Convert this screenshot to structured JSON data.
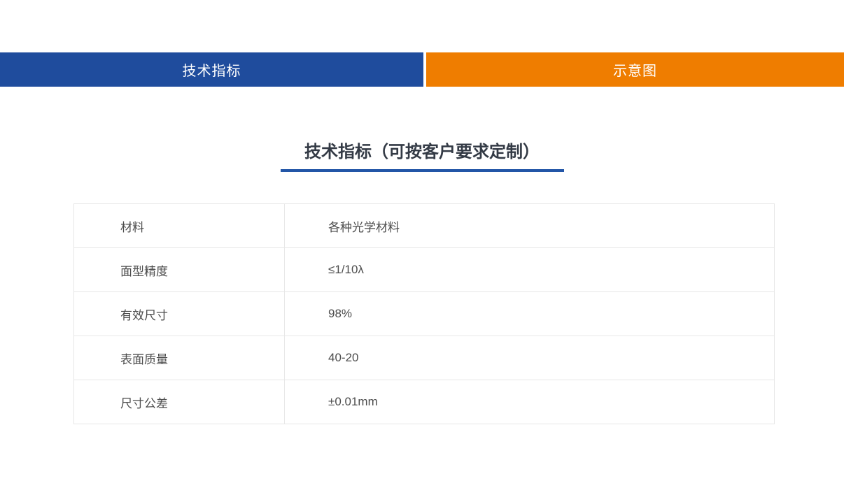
{
  "tabs": [
    {
      "label": "技术指标",
      "color": "#1f4c9d",
      "active": true
    },
    {
      "label": "示意图",
      "color": "#ef7d00",
      "active": false
    }
  ],
  "section": {
    "title": "技术指标（可按客户要求定制）",
    "underline_color": "#2356a7"
  },
  "table": {
    "rows": [
      {
        "label": "材料",
        "value": "各种光学材料"
      },
      {
        "label": "面型精度",
        "value": "≤1/10λ"
      },
      {
        "label": "有效尺寸",
        "value": "98%"
      },
      {
        "label": "表面质量",
        "value": "40-20"
      },
      {
        "label": "尺寸公差",
        "value": "±0.01mm"
      }
    ]
  }
}
